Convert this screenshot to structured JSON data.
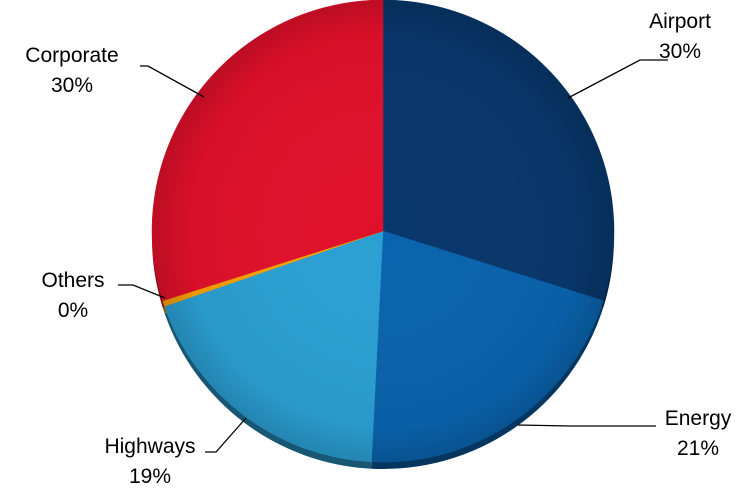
{
  "chart_data": {
    "type": "pie",
    "title": "",
    "legend": "none",
    "slices": [
      {
        "label": "Airport",
        "value": 30,
        "display": "30%",
        "color": "#08376b"
      },
      {
        "label": "Energy",
        "value": 21,
        "display": "21%",
        "color": "#0a63ad"
      },
      {
        "label": "Highways",
        "value": 19,
        "display": "19%",
        "color": "#2b9fd3"
      },
      {
        "label": "Others",
        "value": 0.4,
        "display": "0%",
        "color": "#f5a000"
      },
      {
        "label": "Corporate",
        "value": 30,
        "display": "30%",
        "color": "#e0102a"
      }
    ]
  }
}
